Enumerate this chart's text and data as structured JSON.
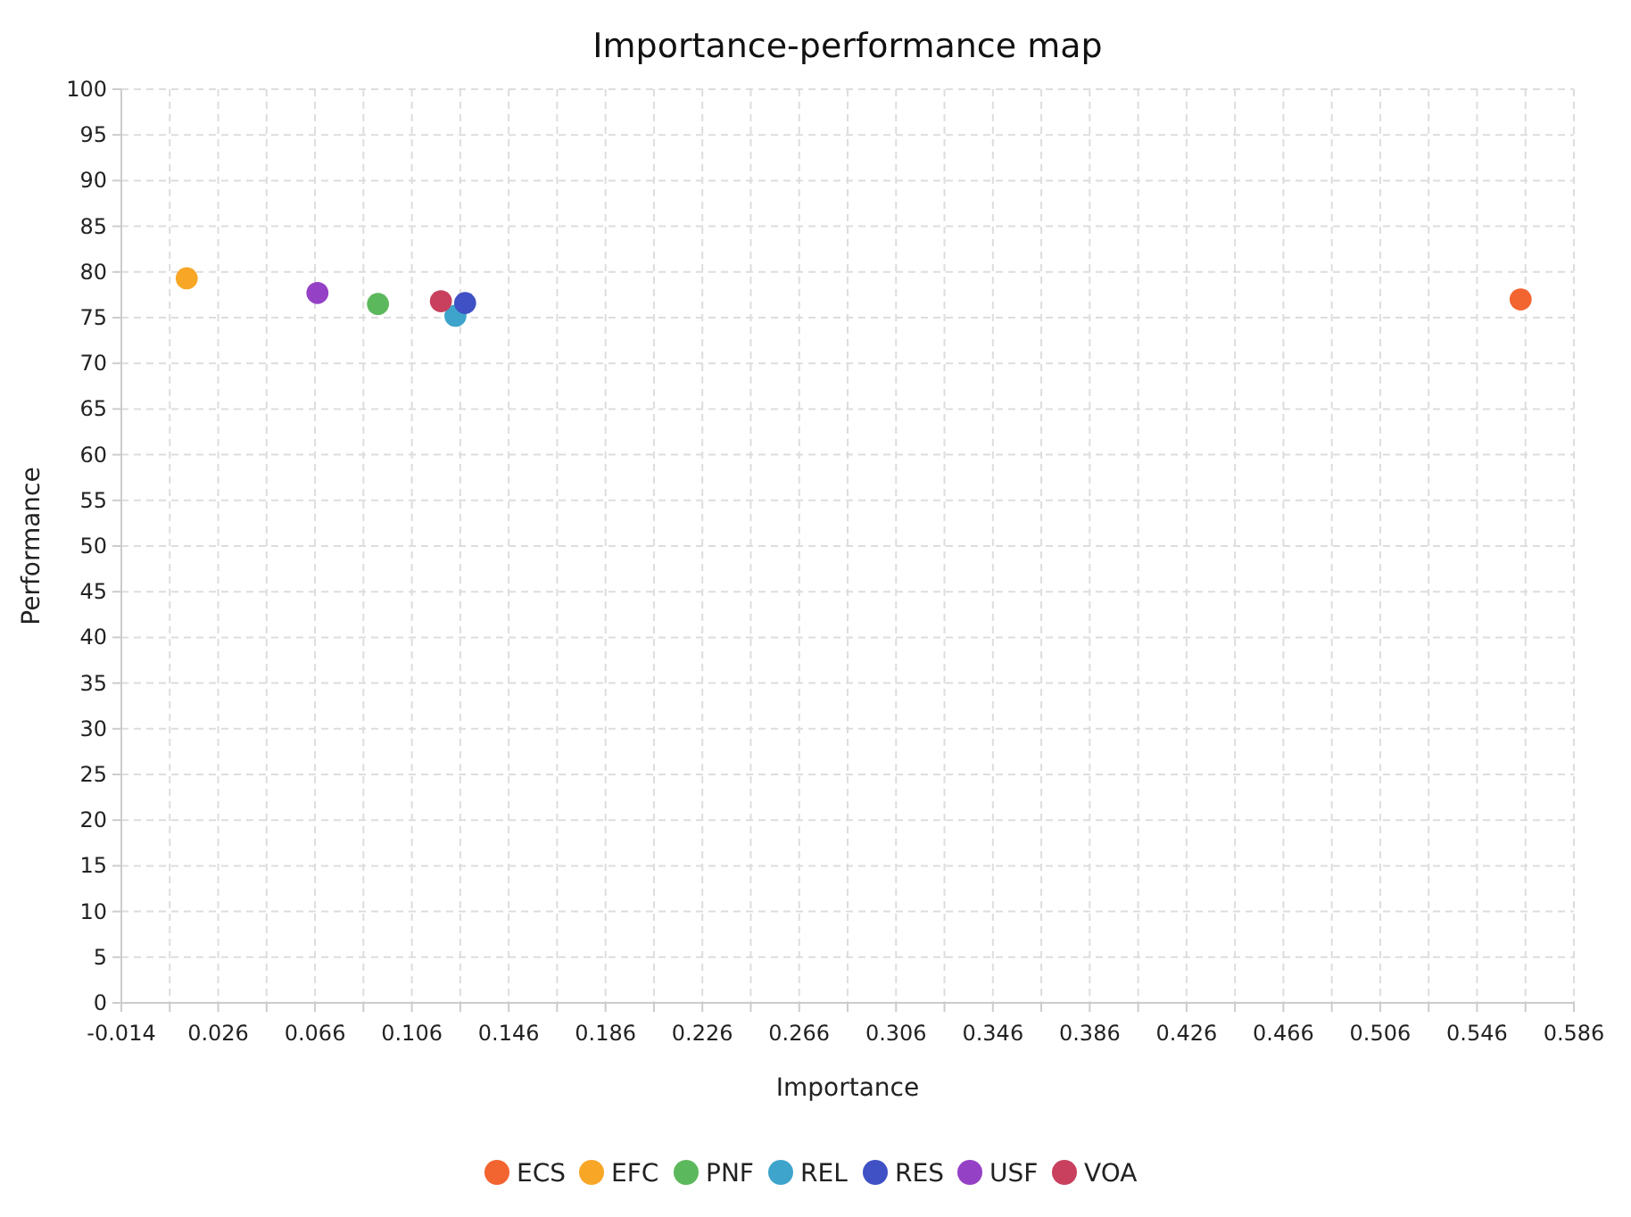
{
  "chart_data": {
    "type": "scatter",
    "title": "Importance-performance map",
    "xlabel": "Importance",
    "ylabel": "Performance",
    "xlim": [
      -0.014,
      0.586
    ],
    "xticks": [
      -0.014,
      {
        "value": 0.006,
        "label": null
      },
      0.026,
      {
        "value": 0.046,
        "label": null
      },
      0.066,
      {
        "value": 0.086,
        "label": null
      },
      0.106,
      {
        "value": 0.126,
        "label": null
      },
      0.146,
      {
        "value": 0.166,
        "label": null
      },
      0.186,
      {
        "value": 0.206,
        "label": null
      },
      0.226,
      {
        "value": 0.246,
        "label": null
      },
      0.266,
      {
        "value": 0.286,
        "label": null
      },
      0.306,
      {
        "value": 0.326,
        "label": null
      },
      0.346,
      {
        "value": 0.366,
        "label": null
      },
      0.386,
      {
        "value": 0.406,
        "label": null
      },
      0.426,
      {
        "value": 0.446,
        "label": null
      },
      0.466,
      {
        "value": 0.486,
        "label": null
      },
      0.506,
      {
        "value": 0.526,
        "label": null
      },
      0.546,
      {
        "value": 0.566,
        "label": null
      },
      0.586
    ],
    "ylim": [
      0,
      100
    ],
    "yticks": [
      0,
      5,
      10,
      15,
      20,
      25,
      30,
      35,
      40,
      45,
      50,
      55,
      60,
      65,
      70,
      75,
      80,
      85,
      90,
      95,
      100
    ],
    "grid": true,
    "legend": "bottom",
    "marker": "circle",
    "series": [
      {
        "name": "ECS",
        "color": "#f26430",
        "x": [
          0.564
        ],
        "values": [
          77.0
        ]
      },
      {
        "name": "EFC",
        "color": "#f8a626",
        "x": [
          0.013
        ],
        "values": [
          79.3
        ]
      },
      {
        "name": "PNF",
        "color": "#5cb85c",
        "x": [
          0.092
        ],
        "values": [
          76.5
        ]
      },
      {
        "name": "REL",
        "color": "#3ea4cc",
        "x": [
          0.124
        ],
        "values": [
          75.2
        ]
      },
      {
        "name": "RES",
        "color": "#3f51c4",
        "x": [
          0.128
        ],
        "values": [
          76.6
        ]
      },
      {
        "name": "USF",
        "color": "#9541c6",
        "x": [
          0.067
        ],
        "values": [
          77.7
        ]
      },
      {
        "name": "VOA",
        "color": "#c8405e",
        "x": [
          0.118
        ],
        "values": [
          76.8
        ]
      }
    ]
  }
}
